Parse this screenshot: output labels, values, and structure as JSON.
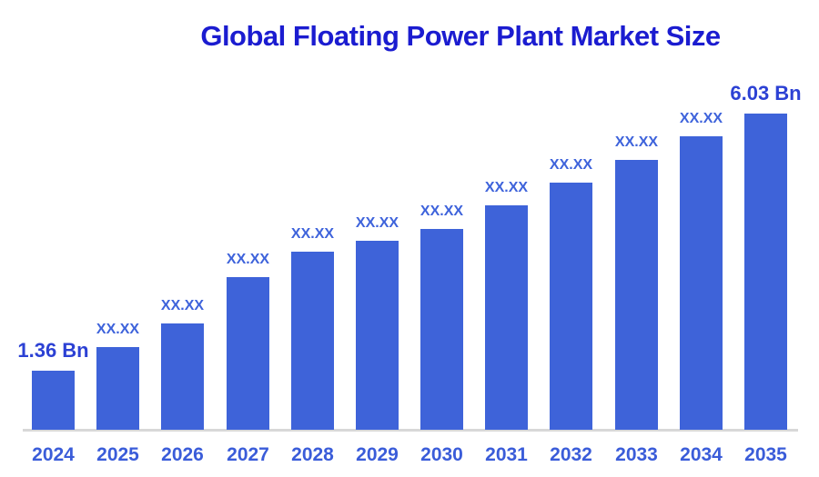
{
  "title": "Global Floating Power Plant Market Size",
  "colors": {
    "title": "#1B1CD0",
    "bar": "#3E63D9",
    "value_label_known": "#2C41D4",
    "value_label_masked": "#3E63DB",
    "year_label": "#3A5CD9",
    "axis_line": "#D8D8D8",
    "background": "#FFFFFF"
  },
  "chart_data": {
    "type": "bar",
    "title": "Global Floating Power Plant Market Size",
    "unit": "Bn",
    "categories": [
      "2024",
      "2025",
      "2026",
      "2027",
      "2028",
      "2029",
      "2030",
      "2031",
      "2032",
      "2033",
      "2034",
      "2035"
    ],
    "value_labels": [
      "1.36 Bn",
      "XX.XX",
      "XX.XX",
      "XX.XX",
      "XX.XX",
      "XX.XX",
      "XX.XX",
      "XX.XX",
      "XX.XX",
      "XX.XX",
      "XX.XX",
      "6.03 Bn"
    ],
    "known_values_bn": {
      "2024": 1.36,
      "2035": 6.03
    },
    "estimated_values_bn": [
      1.36,
      1.79,
      2.22,
      3.05,
      3.52,
      3.71,
      3.93,
      4.35,
      4.77,
      5.19,
      5.61,
      6.03
    ],
    "ylim": [
      0,
      6.5
    ],
    "grid": false,
    "legend": false,
    "xlabel": "",
    "ylabel": ""
  }
}
